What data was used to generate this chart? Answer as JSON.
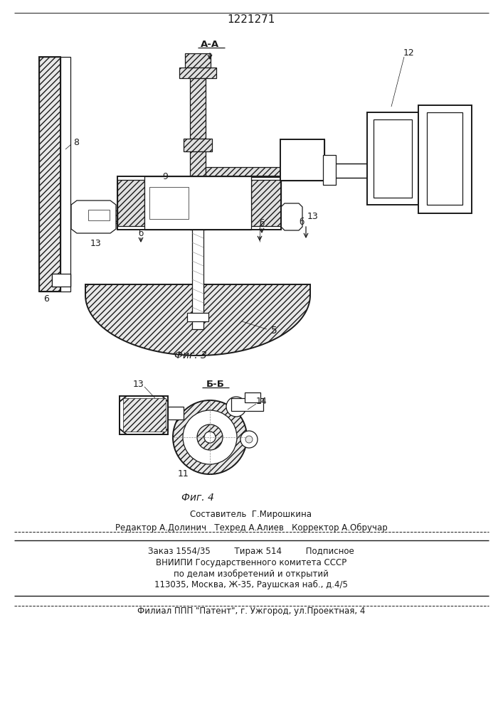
{
  "patent_number": "1221271",
  "fig3_label": "Фиг. 3",
  "fig4_label": "Фиг. 4",
  "section_aa": "А-А",
  "section_bb": "Б-Б",
  "label_6": "6",
  "label_8": "8",
  "label_9": "9",
  "label_12": "12",
  "label_13": "13",
  "label_5": "5",
  "label_11": "11",
  "label_14": "14",
  "label_b": "б",
  "footer_line1": "Составитель  Г.Мирошкина",
  "footer_line2": "Редактор А.Долинич   Техред А.Алиев   Корректор А.Обручар",
  "footer_line3": "Заказ 1554/35         Тираж 514         Подписное",
  "footer_line4": "ВНИИПИ Государственного комитета СССР",
  "footer_line5": "по делам изобретений и открытий",
  "footer_line6": "113035, Москва, Ж-35, Раушская наб., д.4/5",
  "footer_line7": "Филиал ППП \"Патент\", г. Ужгород, ул.Проектная, 4",
  "bg_color": "#ffffff",
  "line_color": "#1a1a1a"
}
